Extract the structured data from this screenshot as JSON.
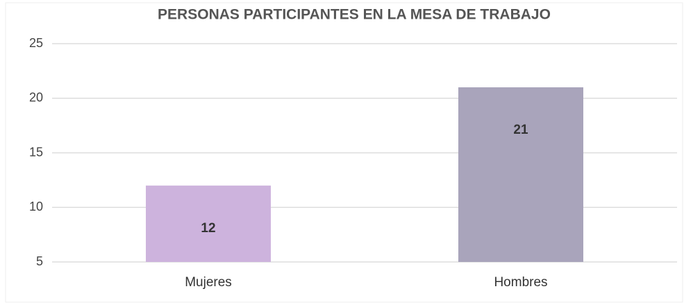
{
  "chart_data": {
    "type": "bar",
    "title": "PERSONAS PARTICIPANTES EN LA MESA DE TRABAJO",
    "categories": [
      "Mujeres",
      "Hombres"
    ],
    "values": [
      12,
      21
    ],
    "colors": [
      "#cdb3dd",
      "#a9a4bb"
    ],
    "ylim": [
      5,
      25
    ],
    "yticks": [
      5,
      10,
      15,
      20,
      25
    ],
    "grid": true
  }
}
